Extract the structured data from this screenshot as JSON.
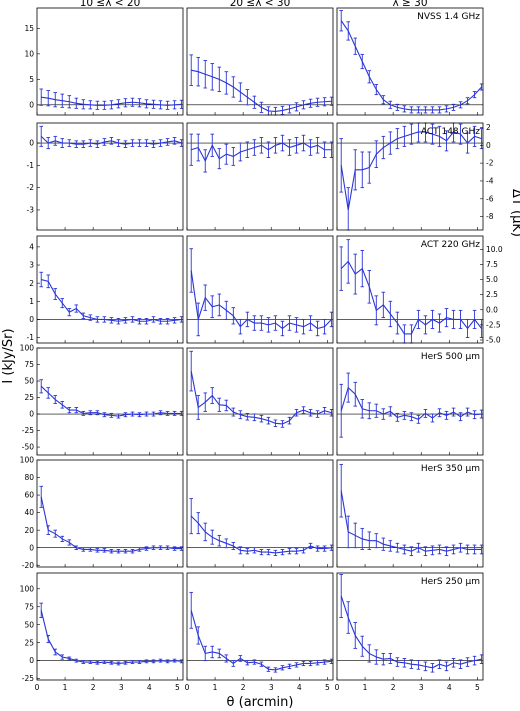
{
  "column_titles": [
    "10 ≤λ < 20",
    "20 ≤λ < 30",
    "λ ≥ 30"
  ],
  "ylabel_left": "I (kJy/Sr)",
  "ylabel_right": "ΔT (μK)",
  "xlabel": "θ (arcmin)",
  "x_ticks": [
    "0",
    "1",
    "2",
    "3",
    "4",
    "5"
  ],
  "series_color": "#2b35d6",
  "chart_data": {
    "type": "line",
    "layout": "6x3 grid",
    "x_range": [
      0,
      5.2
    ],
    "x": [
      0.15,
      0.4,
      0.65,
      0.9,
      1.15,
      1.4,
      1.65,
      1.9,
      2.15,
      2.4,
      2.65,
      2.9,
      3.15,
      3.4,
      3.65,
      3.9,
      4.15,
      4.4,
      4.65,
      4.9,
      5.15
    ],
    "rows": [
      {
        "label": "NVSS 1.4 GHz",
        "ylim": [
          -2,
          19
        ],
        "yticks": [
          0,
          5,
          10,
          15
        ],
        "panels": [
          {
            "y": [
              1.5,
              1.3,
              1.0,
              0.8,
              0.6,
              0.3,
              0.1,
              0.0,
              -0.1,
              -0.1,
              0.0,
              0.2,
              0.4,
              0.5,
              0.4,
              0.2,
              0.1,
              0.0,
              -0.1,
              0.0,
              0.1
            ],
            "err": [
              1.6,
              1.5,
              1.4,
              1.3,
              1.2,
              1.0,
              0.9,
              0.8,
              0.8,
              0.8,
              0.8,
              0.8,
              0.8,
              0.8,
              0.8,
              0.8,
              0.8,
              0.8,
              0.8,
              0.8,
              0.8
            ]
          },
          {
            "y": [
              6.8,
              6.5,
              6.0,
              5.5,
              5.0,
              4.3,
              3.5,
              2.5,
              1.5,
              0.5,
              -0.5,
              -1.2,
              -1.3,
              -1.1,
              -0.8,
              -0.4,
              0.0,
              0.3,
              0.5,
              0.6,
              0.7
            ],
            "err": [
              3.0,
              2.8,
              2.7,
              2.6,
              2.4,
              2.2,
              2.0,
              1.8,
              1.5,
              1.2,
              1.0,
              0.8,
              0.8,
              0.8,
              0.8,
              0.8,
              0.8,
              0.8,
              0.8,
              0.8,
              0.8
            ]
          },
          {
            "y": [
              16.5,
              14.5,
              11.5,
              8.5,
              5.5,
              3.0,
              1.0,
              0.0,
              -0.5,
              -0.8,
              -1.0,
              -1.0,
              -1.0,
              -1.0,
              -1.0,
              -0.8,
              -0.5,
              0.0,
              0.8,
              2.0,
              3.5
            ],
            "err": [
              2.0,
              1.8,
              1.6,
              1.4,
              1.2,
              1.0,
              0.8,
              0.7,
              0.6,
              0.6,
              0.6,
              0.6,
              0.6,
              0.6,
              0.6,
              0.6,
              0.6,
              0.6,
              0.6,
              0.6,
              0.6
            ]
          }
        ]
      },
      {
        "label": "ACT 148 GHz",
        "ylim": [
          -3.9,
          0.9
        ],
        "yticks": [
          -3,
          -2,
          -1,
          0
        ],
        "right_ylim": [
          -9.5,
          2.5
        ],
        "right_yticks": [
          -8,
          -6,
          -4,
          -2,
          0,
          2
        ],
        "panels": [
          {
            "y": [
              0.3,
              0.0,
              0.1,
              0.0,
              0.0,
              -0.05,
              -0.05,
              0.0,
              -0.05,
              0.05,
              0.1,
              0.0,
              -0.05,
              0.0,
              0.0,
              0.0,
              -0.05,
              0.0,
              0.05,
              0.1,
              0.0
            ],
            "err": [
              0.45,
              0.25,
              0.2,
              0.2,
              0.15,
              0.15,
              0.15,
              0.15,
              0.15,
              0.15,
              0.15,
              0.15,
              0.15,
              0.15,
              0.15,
              0.15,
              0.15,
              0.15,
              0.15,
              0.15,
              0.15
            ]
          },
          {
            "y": [
              -0.3,
              -0.2,
              -0.8,
              -0.1,
              -0.7,
              -0.5,
              -0.6,
              -0.4,
              -0.3,
              -0.2,
              -0.1,
              -0.3,
              -0.1,
              0.0,
              -0.2,
              -0.1,
              0.0,
              -0.2,
              -0.1,
              -0.3,
              -0.3
            ],
            "err": [
              0.7,
              0.6,
              0.5,
              0.5,
              0.45,
              0.45,
              0.4,
              0.4,
              0.35,
              0.35,
              0.35,
              0.35,
              0.35,
              0.35,
              0.35,
              0.35,
              0.35,
              0.35,
              0.35,
              0.35,
              0.35
            ]
          },
          {
            "y": [
              -1.0,
              -3.0,
              -1.2,
              -1.2,
              -1.1,
              -0.5,
              -0.2,
              0.0,
              0.2,
              0.3,
              0.4,
              0.5,
              0.5,
              0.4,
              0.3,
              0.1,
              0.5,
              0.4,
              0.0,
              0.3,
              0.2
            ],
            "err": [
              1.2,
              1.0,
              0.9,
              0.8,
              0.7,
              0.6,
              0.5,
              0.5,
              0.45,
              0.45,
              0.45,
              0.45,
              0.45,
              0.45,
              0.45,
              0.45,
              0.45,
              0.45,
              0.45,
              0.45,
              0.45
            ]
          }
        ]
      },
      {
        "label": "ACT 220 GHz",
        "ylim": [
          -1.3,
          4.6
        ],
        "yticks": [
          -1,
          0,
          1,
          2,
          3,
          4
        ],
        "right_ylim": [
          -5.5,
          12.2
        ],
        "right_yticks": [
          -5.0,
          -2.5,
          0.0,
          2.5,
          5.0,
          7.5,
          10.0
        ],
        "panels": [
          {
            "y": [
              2.2,
              2.1,
              1.4,
              0.9,
              0.4,
              0.6,
              0.2,
              0.1,
              0.0,
              0.0,
              -0.05,
              -0.1,
              -0.05,
              0.0,
              -0.1,
              -0.1,
              0.0,
              -0.1,
              -0.1,
              -0.05,
              0.0
            ],
            "err": [
              0.4,
              0.35,
              0.3,
              0.25,
              0.2,
              0.2,
              0.15,
              0.15,
              0.15,
              0.15,
              0.15,
              0.15,
              0.15,
              0.15,
              0.15,
              0.15,
              0.15,
              0.15,
              0.15,
              0.15,
              0.15
            ]
          },
          {
            "y": [
              2.7,
              0.0,
              1.2,
              0.7,
              0.8,
              0.5,
              0.2,
              -0.4,
              0.0,
              -0.2,
              -0.2,
              -0.3,
              -0.2,
              -0.5,
              -0.2,
              -0.3,
              -0.4,
              -0.2,
              -0.5,
              -0.4,
              0.0
            ],
            "err": [
              1.2,
              0.9,
              0.7,
              0.6,
              0.6,
              0.5,
              0.45,
              0.4,
              0.4,
              0.4,
              0.4,
              0.4,
              0.4,
              0.4,
              0.4,
              0.4,
              0.4,
              0.4,
              0.4,
              0.4,
              0.4
            ]
          },
          {
            "y": [
              2.8,
              3.2,
              2.5,
              2.8,
              1.8,
              0.5,
              0.8,
              0.3,
              -0.2,
              -0.8,
              -0.8,
              0.0,
              -0.3,
              0.0,
              -0.2,
              0.1,
              0.0,
              0.0,
              -0.5,
              0.0,
              -0.5
            ],
            "err": [
              1.2,
              1.2,
              1.1,
              1.0,
              0.9,
              0.8,
              0.7,
              0.7,
              0.6,
              0.5,
              0.5,
              0.5,
              0.5,
              0.5,
              0.5,
              0.5,
              0.5,
              0.5,
              0.5,
              0.5,
              0.5
            ]
          }
        ]
      },
      {
        "label": "HerS 500 μm",
        "ylim": [
          -62,
          100
        ],
        "yticks": [
          -50,
          -25,
          0,
          25,
          50,
          75,
          100
        ],
        "panels": [
          {
            "y": [
              42,
              32,
              22,
              14,
              6,
              6,
              1,
              2,
              2,
              -1,
              -2,
              -3,
              -1,
              0,
              -1,
              0,
              0,
              2,
              1,
              1,
              1
            ],
            "err": [
              10,
              8,
              6,
              5,
              4,
              4,
              3,
              3,
              3,
              3,
              3,
              3,
              3,
              3,
              3,
              3,
              3,
              3,
              3,
              3,
              3
            ]
          },
          {
            "y": [
              65,
              10,
              18,
              28,
              14,
              13,
              3,
              -1,
              -4,
              -5,
              -7,
              -10,
              -14,
              -15,
              -10,
              2,
              6,
              2,
              0,
              5,
              2
            ],
            "err": [
              30,
              18,
              14,
              12,
              10,
              8,
              6,
              6,
              5,
              5,
              5,
              5,
              5,
              5,
              5,
              5,
              5,
              5,
              5,
              5,
              5
            ]
          },
          {
            "y": [
              5,
              40,
              30,
              8,
              5,
              5,
              0,
              4,
              -5,
              -2,
              -4,
              -8,
              1,
              -6,
              2,
              -2,
              3,
              -4,
              3,
              -1,
              0
            ],
            "err": [
              40,
              22,
              18,
              14,
              12,
              10,
              8,
              7,
              6,
              6,
              6,
              6,
              6,
              6,
              6,
              6,
              6,
              6,
              6,
              6,
              6
            ]
          }
        ]
      },
      {
        "label": "HerS 350 μm",
        "ylim": [
          -22,
          100
        ],
        "yticks": [
          -20,
          0,
          20,
          40,
          60,
          80,
          100
        ],
        "panels": [
          {
            "y": [
              58,
              20,
              16,
              10,
              6,
              0,
              -2,
              -2,
              -3,
              -3,
              -4,
              -4,
              -4,
              -4,
              -2,
              -1,
              0,
              0,
              0,
              -1,
              -1
            ],
            "err": [
              12,
              5,
              4,
              3,
              3,
              2,
              2,
              2,
              2,
              2,
              2,
              2,
              2,
              2,
              2,
              2,
              2,
              2,
              2,
              2,
              2
            ]
          },
          {
            "y": [
              36,
              28,
              18,
              12,
              8,
              5,
              2,
              -3,
              -4,
              -3,
              -5,
              -5,
              -6,
              -5,
              -4,
              -4,
              -3,
              2,
              -1,
              -1,
              0
            ],
            "err": [
              20,
              12,
              10,
              8,
              6,
              5,
              4,
              4,
              3,
              3,
              3,
              3,
              3,
              3,
              3,
              3,
              3,
              3,
              3,
              3,
              3
            ]
          },
          {
            "y": [
              65,
              18,
              14,
              10,
              8,
              8,
              4,
              2,
              0,
              -2,
              -4,
              0,
              -4,
              -3,
              -2,
              -4,
              -2,
              0,
              -2,
              -2,
              -2
            ],
            "err": [
              30,
              18,
              14,
              12,
              10,
              8,
              7,
              6,
              5,
              5,
              5,
              5,
              5,
              5,
              5,
              5,
              5,
              5,
              5,
              5,
              5
            ]
          }
        ]
      },
      {
        "label": "HerS 250 μm",
        "ylim": [
          -27,
          122
        ],
        "yticks": [
          -25,
          0,
          25,
          50,
          75,
          100
        ],
        "panels": [
          {
            "y": [
              70,
              30,
              12,
              5,
              3,
              0,
              -2,
              -2,
              -3,
              -2,
              -3,
              -4,
              -3,
              -2,
              -2,
              -1,
              -1,
              0,
              -1,
              0,
              -1
            ],
            "err": [
              10,
              5,
              4,
              3,
              2,
              2,
              2,
              2,
              2,
              2,
              2,
              2,
              2,
              2,
              2,
              2,
              2,
              2,
              2,
              2,
              2
            ]
          },
          {
            "y": [
              70,
              35,
              10,
              12,
              10,
              3,
              -4,
              3,
              -3,
              -2,
              -5,
              -12,
              -13,
              -10,
              -8,
              -6,
              -4,
              -4,
              -3,
              -2,
              -1
            ],
            "err": [
              25,
              12,
              10,
              8,
              6,
              5,
              4,
              4,
              3,
              3,
              3,
              3,
              3,
              3,
              3,
              3,
              3,
              3,
              3,
              3,
              3
            ]
          },
          {
            "y": [
              90,
              60,
              35,
              20,
              10,
              5,
              2,
              3,
              -2,
              -3,
              -5,
              -6,
              -8,
              -10,
              -5,
              -8,
              -3,
              -5,
              -2,
              0,
              2
            ],
            "err": [
              30,
              22,
              18,
              14,
              12,
              10,
              8,
              7,
              6,
              6,
              6,
              6,
              6,
              6,
              6,
              6,
              6,
              6,
              6,
              6,
              6
            ]
          }
        ]
      }
    ]
  }
}
